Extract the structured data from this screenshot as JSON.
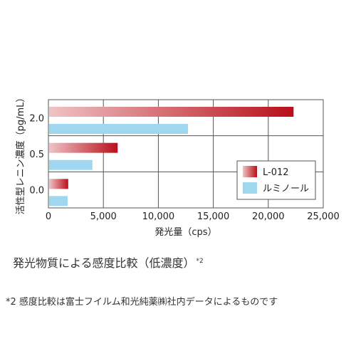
{
  "chart_data": {
    "type": "bar",
    "orientation": "horizontal",
    "categories": [
      "2.0",
      "0.5",
      "0.0"
    ],
    "series": [
      {
        "name": "L-012",
        "values": [
          22300,
          6300,
          1800
        ],
        "color": "#c0141c"
      },
      {
        "name": "ルミノール",
        "values": [
          12700,
          4000,
          1750
        ],
        "color": "#9fd7f0"
      }
    ],
    "xlabel": "発光量（cps）",
    "ylabel": "活性型レニン濃度（pg/mL）",
    "xlim": [
      0,
      25000
    ],
    "xticks": [
      "0",
      "5,000",
      "10,000",
      "15,000",
      "20,000",
      "25,000"
    ],
    "grid": true,
    "legend_position": "bottom-right"
  },
  "caption": {
    "text": "発光物質による感度比較（低濃度）",
    "note_mark": "*2"
  },
  "footnote": "*2 感度比較は富士フイルム和光純薬㈱社内データによるものです"
}
